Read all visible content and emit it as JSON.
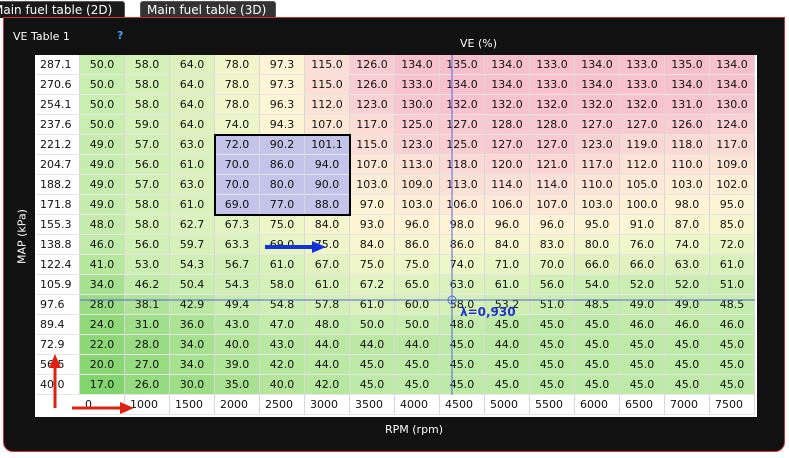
{
  "tabs": [
    "Main fuel table (2D)",
    "Main fuel table (3D)"
  ],
  "table_name": "VE Table 1",
  "help": "?",
  "z_axis_label": "VE (%)",
  "y_axis_label": "MAP (kPa)",
  "x_axis_label": "RPM (rpm)",
  "cursor_label": "λ=0,930",
  "map": [
    "287.1",
    "270.6",
    "254.1",
    "237.6",
    "221.2",
    "204.7",
    "188.2",
    "171.8",
    "155.3",
    "138.8",
    "122.4",
    "105.9",
    "97.6",
    "89.4",
    "72.9",
    "56.5",
    "40.0"
  ],
  "rpm": [
    "0",
    "1000",
    "1500",
    "2000",
    "2500",
    "3000",
    "3500",
    "4000",
    "4500",
    "5000",
    "5500",
    "6000",
    "6500",
    "7000",
    "7500"
  ],
  "rows": [
    [
      "50.0",
      "58.0",
      "64.0",
      "78.0",
      "97.3",
      "115.0",
      "126.0",
      "134.0",
      "135.0",
      "134.0",
      "133.0",
      "134.0",
      "133.0",
      "135.0",
      "134.0"
    ],
    [
      "50.0",
      "58.0",
      "64.0",
      "78.0",
      "97.3",
      "115.0",
      "126.0",
      "133.0",
      "134.0",
      "134.0",
      "133.0",
      "134.0",
      "133.0",
      "134.0",
      "134.0"
    ],
    [
      "50.0",
      "58.0",
      "64.0",
      "78.0",
      "96.3",
      "112.0",
      "123.0",
      "130.0",
      "132.0",
      "132.0",
      "132.0",
      "132.0",
      "132.0",
      "131.0",
      "130.0"
    ],
    [
      "50.0",
      "59.0",
      "64.0",
      "74.0",
      "94.3",
      "107.0",
      "117.0",
      "125.0",
      "127.0",
      "128.0",
      "128.0",
      "127.0",
      "127.0",
      "126.0",
      "124.0"
    ],
    [
      "49.0",
      "57.0",
      "63.0",
      "72.0",
      "90.2",
      "101.1",
      "115.0",
      "123.0",
      "125.0",
      "127.0",
      "127.0",
      "123.0",
      "119.0",
      "118.0",
      "117.0"
    ],
    [
      "49.0",
      "56.0",
      "61.0",
      "70.0",
      "86.0",
      "94.0",
      "107.0",
      "113.0",
      "118.0",
      "120.0",
      "121.0",
      "117.0",
      "112.0",
      "110.0",
      "109.0"
    ],
    [
      "49.0",
      "57.0",
      "63.0",
      "70.0",
      "80.0",
      "90.0",
      "103.0",
      "109.0",
      "113.0",
      "114.0",
      "114.0",
      "110.0",
      "105.0",
      "103.0",
      "102.0"
    ],
    [
      "49.0",
      "58.0",
      "61.0",
      "69.0",
      "77.0",
      "88.0",
      "97.0",
      "103.0",
      "106.0",
      "106.0",
      "107.0",
      "103.0",
      "100.0",
      "98.0",
      "95.0"
    ],
    [
      "48.0",
      "58.0",
      "62.7",
      "67.3",
      "75.0",
      "84.0",
      "93.0",
      "96.0",
      "98.0",
      "96.0",
      "96.0",
      "95.0",
      "91.0",
      "87.0",
      "85.0"
    ],
    [
      "46.0",
      "56.0",
      "59.7",
      "63.3",
      "69.0",
      "75.0",
      "84.0",
      "86.0",
      "86.0",
      "84.0",
      "83.0",
      "80.0",
      "76.0",
      "74.0",
      "72.0"
    ],
    [
      "41.0",
      "53.0",
      "54.3",
      "56.7",
      "61.0",
      "67.0",
      "75.0",
      "75.0",
      "74.0",
      "71.0",
      "70.0",
      "66.0",
      "66.0",
      "63.0",
      "61.0"
    ],
    [
      "34.0",
      "46.2",
      "50.4",
      "54.3",
      "58.0",
      "61.0",
      "67.2",
      "65.0",
      "63.0",
      "61.0",
      "56.0",
      "54.0",
      "52.0",
      "52.0",
      "51.0"
    ],
    [
      "28.0",
      "38.1",
      "42.9",
      "49.4",
      "54.8",
      "57.8",
      "61.0",
      "60.0",
      "58.0",
      "53.2",
      "51.0",
      "48.5",
      "49.0",
      "49.0",
      "48.5"
    ],
    [
      "24.0",
      "31.0",
      "36.0",
      "43.0",
      "47.0",
      "48.0",
      "50.0",
      "50.0",
      "48.0",
      "45.0",
      "45.0",
      "45.0",
      "46.0",
      "46.0",
      "46.0"
    ],
    [
      "22.0",
      "28.0",
      "34.0",
      "40.0",
      "43.0",
      "44.0",
      "44.0",
      "44.0",
      "45.0",
      "44.0",
      "45.0",
      "45.0",
      "45.0",
      "45.0",
      "45.0"
    ],
    [
      "20.0",
      "27.0",
      "34.0",
      "39.0",
      "42.0",
      "44.0",
      "45.0",
      "45.0",
      "45.0",
      "45.0",
      "45.0",
      "45.0",
      "45.0",
      "45.0",
      "45.0"
    ],
    [
      "17.0",
      "26.0",
      "30.0",
      "35.0",
      "40.0",
      "42.0",
      "45.0",
      "45.0",
      "45.0",
      "45.0",
      "45.0",
      "45.0",
      "45.0",
      "45.0",
      "45.0"
    ]
  ]
}
